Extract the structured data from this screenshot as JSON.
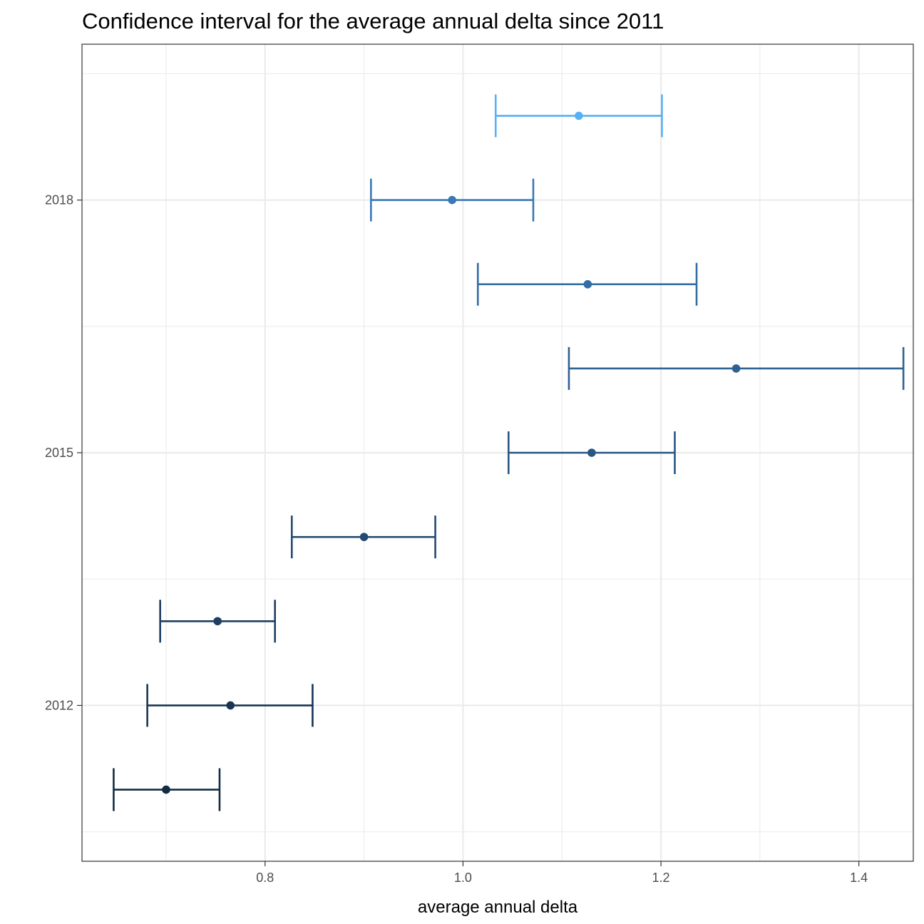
{
  "chart_data": {
    "type": "errorbar",
    "title": "Confidence interval for the average annual delta since 2011",
    "xlabel": "average annual delta",
    "ylabel": "",
    "xlim": [
      0.615,
      1.455
    ],
    "ylim": [
      2010.15,
      2019.85
    ],
    "x_ticks": [
      0.8,
      1.0,
      1.2,
      1.4
    ],
    "x_tick_labels": [
      "0.8",
      "1.0",
      "1.2",
      "1.4"
    ],
    "x_minor_ticks": [
      0.7,
      0.9,
      1.1,
      1.3
    ],
    "y_ticks": [
      2012,
      2015,
      2018
    ],
    "y_tick_labels": [
      "2012",
      "2015",
      "2018"
    ],
    "y_minor_ticks": [
      2010.5,
      2013.5,
      2016.5,
      2019.5
    ],
    "grid": true,
    "legend": "none",
    "color_scale": {
      "low": "#132b43",
      "high": "#56b1f7"
    },
    "points": [
      {
        "year": 2011,
        "mean": 0.7,
        "lower": 0.647,
        "upper": 0.754,
        "color": "#132b43"
      },
      {
        "year": 2012,
        "mean": 0.765,
        "lower": 0.681,
        "upper": 0.848,
        "color": "#183552"
      },
      {
        "year": 2013,
        "mean": 0.752,
        "lower": 0.694,
        "upper": 0.81,
        "color": "#1d3f61"
      },
      {
        "year": 2014,
        "mean": 0.9,
        "lower": 0.827,
        "upper": 0.972,
        "color": "#234a71"
      },
      {
        "year": 2015,
        "mean": 1.13,
        "lower": 1.046,
        "upper": 1.214,
        "color": "#285582"
      },
      {
        "year": 2016,
        "mean": 1.276,
        "lower": 1.107,
        "upper": 1.445,
        "color": "#2e6193"
      },
      {
        "year": 2017,
        "mean": 1.126,
        "lower": 1.015,
        "upper": 1.236,
        "color": "#346ca4"
      },
      {
        "year": 2018,
        "mean": 0.989,
        "lower": 0.907,
        "upper": 1.071,
        "color": "#3a78b6"
      },
      {
        "year": 2019,
        "mean": 1.117,
        "lower": 1.033,
        "upper": 1.201,
        "color": "#56b1f7"
      }
    ]
  }
}
